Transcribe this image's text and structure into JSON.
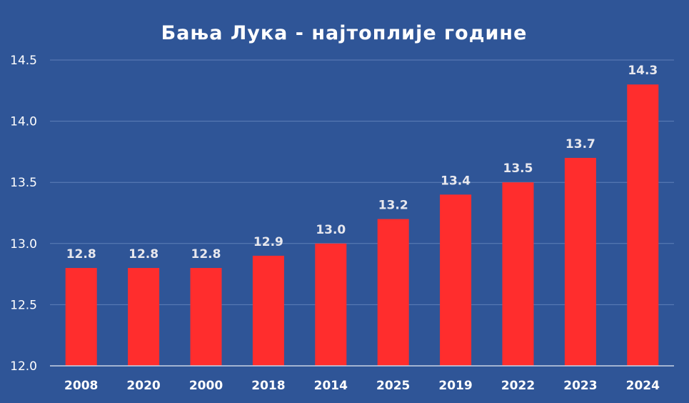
{
  "chart_data": {
    "type": "bar",
    "title": "Бања Лука - најтоплије године",
    "categories": [
      "2008",
      "2020",
      "2000",
      "2018",
      "2014",
      "2025",
      "2019",
      "2022",
      "2023",
      "2024"
    ],
    "values": [
      12.8,
      12.8,
      12.8,
      12.9,
      13.0,
      13.2,
      13.4,
      13.5,
      13.7,
      14.3
    ],
    "data_labels": [
      "12.8",
      "12.8",
      "12.8",
      "12.9",
      "13.0",
      "13.2",
      "13.4",
      "13.5",
      "13.7",
      "14.3"
    ],
    "ylim": [
      12.0,
      14.5
    ],
    "yticks": [
      "12.0",
      "12.5",
      "13.0",
      "13.5",
      "14.0",
      "14.5"
    ],
    "grid": true,
    "colors": {
      "background": "#2f5597",
      "bar": "#ff2d2d",
      "text": "#ffffff"
    }
  }
}
